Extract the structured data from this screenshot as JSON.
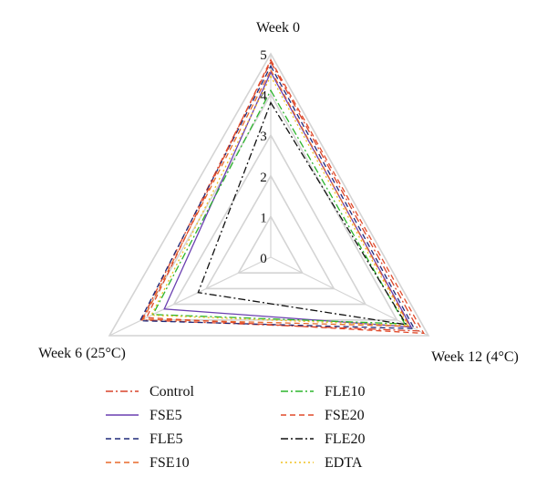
{
  "chart_data": {
    "type": "radar",
    "title": "",
    "axes": [
      "Week 0",
      "Week 12 (4°C)",
      "Week 6 (25°C)"
    ],
    "range": [
      0,
      5
    ],
    "ticks": [
      "0",
      "1",
      "2",
      "3",
      "4",
      "5"
    ],
    "grid": true,
    "legend_position": "bottom",
    "series": [
      {
        "name": "Control",
        "values": [
          4.8,
          4.7,
          4.0
        ],
        "color": "#d9442a",
        "dash": "8 3 2 3"
      },
      {
        "name": "FSE5",
        "values": [
          4.55,
          4.45,
          3.3
        ],
        "color": "#6a3fb0",
        "dash": ""
      },
      {
        "name": "FLE5",
        "values": [
          4.7,
          4.55,
          4.05
        ],
        "color": "#1f2a7a",
        "dash": "6 4"
      },
      {
        "name": "FSE10",
        "values": [
          4.6,
          4.4,
          3.95
        ],
        "color": "#e8682a",
        "dash": "6 4"
      },
      {
        "name": "FLE10",
        "values": [
          4.1,
          4.25,
          3.65
        ],
        "color": "#2db52d",
        "dash": "8 3 2 3"
      },
      {
        "name": "FSE20",
        "values": [
          4.85,
          4.85,
          3.85
        ],
        "color": "#e04a2a",
        "dash": "6 4"
      },
      {
        "name": "FLE20",
        "values": [
          3.8,
          4.3,
          2.25
        ],
        "color": "#111111",
        "dash": "8 3 2 3"
      },
      {
        "name": "EDTA",
        "values": [
          4.45,
          4.35,
          3.7
        ],
        "color": "#f0c020",
        "dash": "2 3"
      }
    ]
  }
}
